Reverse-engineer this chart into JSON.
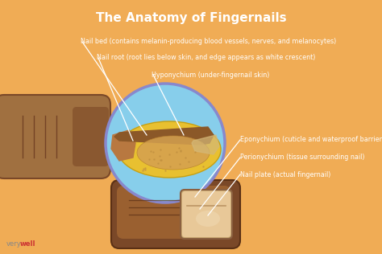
{
  "title": "The Anatomy of Fingernails",
  "bg_color": "#F0AC55",
  "title_color": "#ffffff",
  "label_color": "#ffffff",
  "labels_top": [
    "Nail bed (contains melanin-producing blood vessels, nerves, and melanocytes)",
    "Nail root (root lies below skin, and edge appears as white crescent)",
    "Hyponychium (under-fingernail skin)"
  ],
  "labels_right": [
    "Eponychium (cuticle and waterproof barrier)",
    "Perionychium (tissue surrounding nail)",
    "Nail plate (actual fingernail)"
  ],
  "watermark_grey": "very",
  "watermark_red": "well",
  "finger_left_color": "#A0693A",
  "finger_left_dark": "#6B3A20",
  "circle_color": "#87CEEB",
  "circle_edge": "#8888CC",
  "nail_yellow": "#E8C040",
  "nail_brown": "#A0703A",
  "nail_root_brown": "#C09050",
  "nail_inner": "#D4A060",
  "finger2_color": "#8B5A2B",
  "finger2_dark": "#5A3018",
  "nail_plate_color": "#E8C8A0"
}
